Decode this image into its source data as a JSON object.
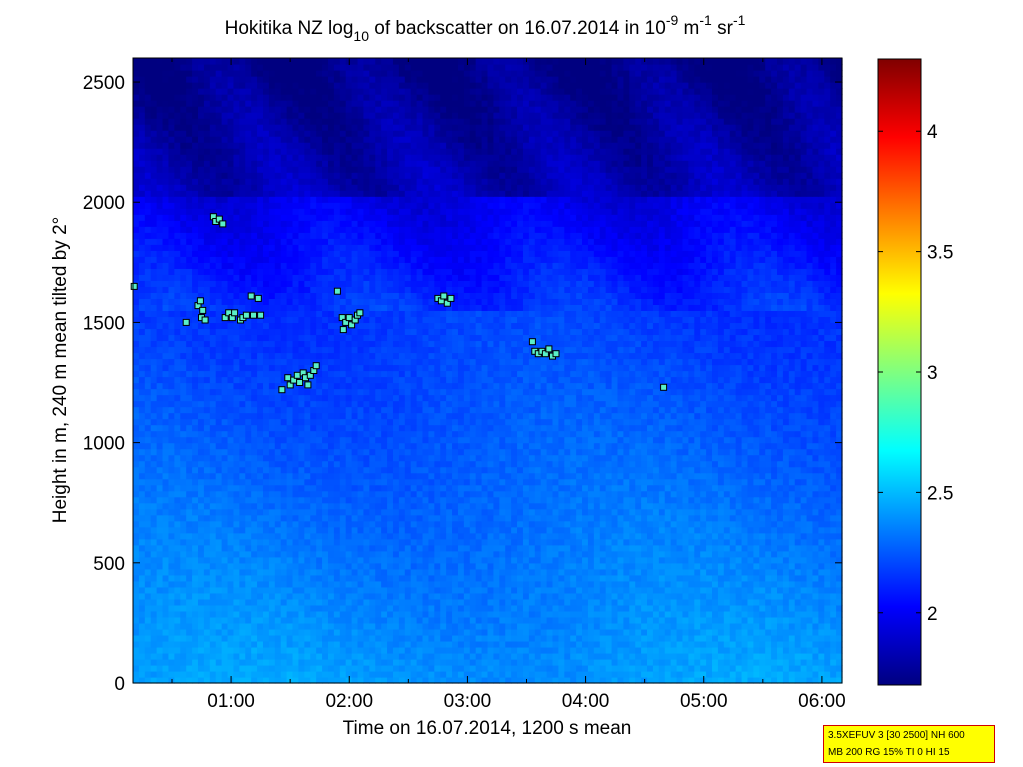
{
  "chart_data": {
    "type": "heatmap",
    "title_parts": {
      "a": "Hokitika NZ log",
      "a_sub": "10",
      "b": " of backscatter on 16.07.2014 in 10",
      "b_sup": "-9",
      "c": " m",
      "c_sup": "-1",
      "d": " sr",
      "d_sup": "-1"
    },
    "xlabel": "Time on 16.07.2014, 1200 s mean",
    "ylabel": "Height in m, 240 m mean tilted by 2°",
    "x_ticks": [
      "01:00",
      "02:00",
      "03:00",
      "04:00",
      "05:00",
      "06:00"
    ],
    "x_tick_hours": [
      1,
      2,
      3,
      4,
      5,
      6
    ],
    "xlim_hours": [
      0.17,
      6.17
    ],
    "y_ticks": [
      "0",
      "500",
      "1000",
      "1500",
      "2000",
      "2500"
    ],
    "y_tick_values": [
      0,
      500,
      1000,
      1500,
      2000,
      2500
    ],
    "ylim": [
      0,
      2600
    ],
    "colorbar": {
      "range": [
        1.7,
        4.3
      ],
      "ticks": [
        "2",
        "2.5",
        "3",
        "3.5",
        "4"
      ],
      "tick_values": [
        2,
        2.5,
        3,
        3.5,
        4
      ],
      "colormap": "jet"
    },
    "markers": [
      {
        "t": 0.18,
        "h": 1650
      },
      {
        "t": 0.62,
        "h": 1500
      },
      {
        "t": 0.72,
        "h": 1570
      },
      {
        "t": 0.74,
        "h": 1590
      },
      {
        "t": 0.75,
        "h": 1520
      },
      {
        "t": 0.76,
        "h": 1550
      },
      {
        "t": 0.78,
        "h": 1510
      },
      {
        "t": 0.85,
        "h": 1940
      },
      {
        "t": 0.87,
        "h": 1920
      },
      {
        "t": 0.9,
        "h": 1930
      },
      {
        "t": 0.93,
        "h": 1910
      },
      {
        "t": 0.95,
        "h": 1520
      },
      {
        "t": 0.98,
        "h": 1540
      },
      {
        "t": 1.01,
        "h": 1520
      },
      {
        "t": 1.03,
        "h": 1540
      },
      {
        "t": 1.08,
        "h": 1510
      },
      {
        "t": 1.1,
        "h": 1520
      },
      {
        "t": 1.13,
        "h": 1530
      },
      {
        "t": 1.17,
        "h": 1610
      },
      {
        "t": 1.19,
        "h": 1530
      },
      {
        "t": 1.23,
        "h": 1600
      },
      {
        "t": 1.25,
        "h": 1530
      },
      {
        "t": 1.43,
        "h": 1220
      },
      {
        "t": 1.48,
        "h": 1270
      },
      {
        "t": 1.5,
        "h": 1240
      },
      {
        "t": 1.53,
        "h": 1260
      },
      {
        "t": 1.56,
        "h": 1280
      },
      {
        "t": 1.58,
        "h": 1250
      },
      {
        "t": 1.61,
        "h": 1290
      },
      {
        "t": 1.63,
        "h": 1270
      },
      {
        "t": 1.65,
        "h": 1240
      },
      {
        "t": 1.67,
        "h": 1280
      },
      {
        "t": 1.7,
        "h": 1300
      },
      {
        "t": 1.72,
        "h": 1320
      },
      {
        "t": 1.9,
        "h": 1630
      },
      {
        "t": 1.94,
        "h": 1520
      },
      {
        "t": 1.95,
        "h": 1470
      },
      {
        "t": 1.97,
        "h": 1500
      },
      {
        "t": 2.0,
        "h": 1520
      },
      {
        "t": 2.02,
        "h": 1490
      },
      {
        "t": 2.05,
        "h": 1510
      },
      {
        "t": 2.07,
        "h": 1530
      },
      {
        "t": 2.09,
        "h": 1540
      },
      {
        "t": 2.75,
        "h": 1600
      },
      {
        "t": 2.78,
        "h": 1590
      },
      {
        "t": 2.8,
        "h": 1610
      },
      {
        "t": 2.83,
        "h": 1580
      },
      {
        "t": 2.86,
        "h": 1600
      },
      {
        "t": 3.55,
        "h": 1420
      },
      {
        "t": 3.57,
        "h": 1380
      },
      {
        "t": 3.6,
        "h": 1370
      },
      {
        "t": 3.63,
        "h": 1380
      },
      {
        "t": 3.66,
        "h": 1370
      },
      {
        "t": 3.69,
        "h": 1390
      },
      {
        "t": 3.72,
        "h": 1360
      },
      {
        "t": 3.75,
        "h": 1370
      },
      {
        "t": 4.66,
        "h": 1230
      }
    ]
  },
  "info_box": {
    "line1": "3.5XEFUV 3 [30 2500] NH 600",
    "line2": "MB 200 RG 15% TI 0 HI 15"
  }
}
